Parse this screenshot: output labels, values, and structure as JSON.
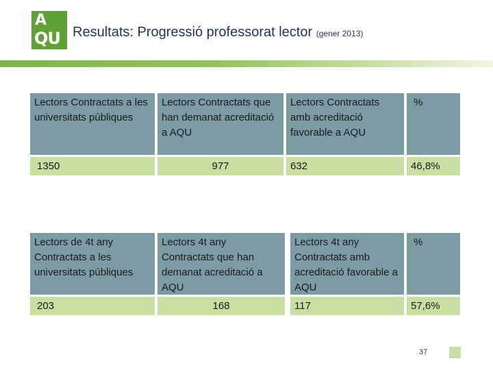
{
  "logo": {
    "line1": "A",
    "line2": "QU"
  },
  "header": {
    "title": "Resultats: Progressió professorat lector",
    "subtitle": "(gener 2013)"
  },
  "tables": [
    {
      "headers": [
        "Lectors Contractats a les universitats públiques",
        "Lectors Contractats  que han demanat acreditació a AQU",
        " Lectors Contractats  amb acreditació favorable a AQU",
        "%"
      ],
      "values": [
        "1350",
        "977",
        "632",
        "46,8%"
      ]
    },
    {
      "headers": [
        "Lectors  de 4t any Contractats a les universitats públiques",
        "Lectors 4t any Contractats  que han demanat acreditació a AQU",
        " Lectors  4t any Contractats  amb acreditació favorable a AQU",
        "%"
      ],
      "values": [
        "203",
        "168",
        "117",
        "57,6%"
      ]
    }
  ],
  "footer": {
    "page_number": "37"
  },
  "colors": {
    "header_cell": "#7d9ba3",
    "value_cell": "#c7e0a2",
    "brand_green": "#5fa037",
    "title_text": "#1f3557"
  }
}
